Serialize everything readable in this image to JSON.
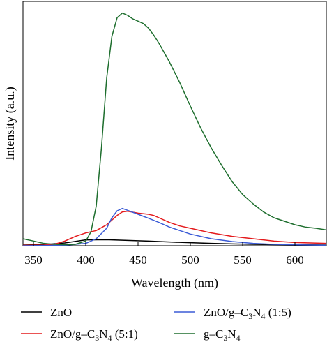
{
  "chart_data": {
    "type": "line",
    "title": "",
    "xlabel": "Wavelength (nm)",
    "ylabel": "Intensity (a.u.)",
    "xlim": [
      340,
      630
    ],
    "ylim": [
      0,
      1.05
    ],
    "xticks": [
      350,
      400,
      450,
      500,
      550,
      600
    ],
    "y_tick_labels_shown": false,
    "grid": false,
    "legend_position": "bottom",
    "series": [
      {
        "name": "ZnO",
        "color": "#000000",
        "x": [
          340,
          360,
          380,
          400,
          420,
          440,
          460,
          480,
          500,
          520,
          540,
          560,
          580,
          600,
          630
        ],
        "y": [
          0.003,
          0.005,
          0.012,
          0.025,
          0.026,
          0.023,
          0.02,
          0.016,
          0.013,
          0.01,
          0.008,
          0.006,
          0.005,
          0.004,
          0.003
        ]
      },
      {
        "name": "ZnO/g–C3N4 (5:1)",
        "color": "#e41a1c",
        "x": [
          340,
          360,
          370,
          380,
          390,
          400,
          410,
          420,
          430,
          435,
          440,
          450,
          460,
          465,
          470,
          480,
          490,
          500,
          520,
          540,
          560,
          580,
          600,
          630
        ],
        "y": [
          0.002,
          0.003,
          0.006,
          0.02,
          0.04,
          0.055,
          0.065,
          0.09,
          0.13,
          0.145,
          0.148,
          0.14,
          0.135,
          0.13,
          0.12,
          0.1,
          0.085,
          0.075,
          0.055,
          0.04,
          0.03,
          0.02,
          0.014,
          0.01
        ]
      },
      {
        "name": "ZnO/g–C3N4 (1:5)",
        "color": "#3b5bd6",
        "x": [
          340,
          380,
          400,
          410,
          420,
          425,
          430,
          435,
          440,
          450,
          460,
          470,
          480,
          500,
          520,
          540,
          560,
          580,
          600,
          630
        ],
        "y": [
          0.0,
          0.002,
          0.01,
          0.03,
          0.075,
          0.12,
          0.15,
          0.16,
          0.152,
          0.135,
          0.118,
          0.1,
          0.08,
          0.05,
          0.03,
          0.018,
          0.01,
          0.006,
          0.004,
          0.002
        ]
      },
      {
        "name": "g–C3N4",
        "color": "#1e6e2e",
        "x": [
          340,
          350,
          360,
          370,
          380,
          390,
          400,
          405,
          410,
          415,
          420,
          425,
          430,
          435,
          440,
          445,
          450,
          455,
          460,
          465,
          470,
          480,
          490,
          500,
          510,
          520,
          530,
          540,
          550,
          560,
          570,
          580,
          590,
          600,
          610,
          620,
          630
        ],
        "y": [
          0.03,
          0.02,
          0.01,
          0.006,
          0.004,
          0.006,
          0.02,
          0.06,
          0.17,
          0.42,
          0.72,
          0.9,
          0.98,
          1.0,
          0.99,
          0.975,
          0.965,
          0.955,
          0.935,
          0.905,
          0.87,
          0.79,
          0.7,
          0.6,
          0.505,
          0.42,
          0.345,
          0.275,
          0.22,
          0.18,
          0.145,
          0.12,
          0.105,
          0.09,
          0.08,
          0.075,
          0.068
        ]
      }
    ]
  },
  "legend": {
    "zno": {
      "label": "ZnO",
      "color": "#000000"
    },
    "zno_51": {
      "label_main": "ZnO/g–C",
      "sub1": "3",
      "mid": "N",
      "sub2": "4",
      "tail": " (5:1)",
      "color": "#e41a1c"
    },
    "zno_15": {
      "label_main": "ZnO/g–C",
      "sub1": "3",
      "mid": "N",
      "sub2": "4",
      "tail": " (1:5)",
      "color": "#3b5bd6"
    },
    "gcn": {
      "label_main": "g–C",
      "sub1": "3",
      "mid": "N",
      "sub2": "4",
      "tail": "",
      "color": "#1e6e2e"
    }
  }
}
